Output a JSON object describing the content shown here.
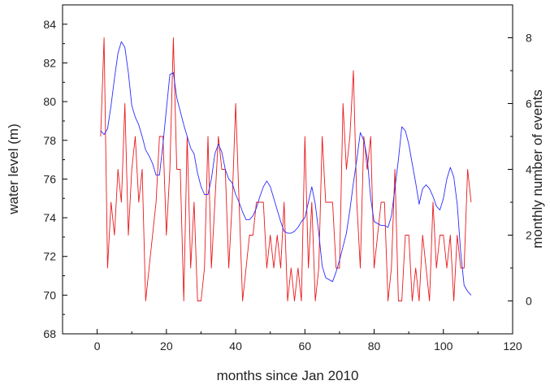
{
  "chart_data": {
    "type": "line",
    "xlabel": "months since Jan 2010",
    "ylabel_left": "water level (m)",
    "ylabel_right": "monthly number of events",
    "xlim": [
      -10,
      120
    ],
    "ylim_left": [
      68,
      85
    ],
    "ylim_right": [
      -1,
      9
    ],
    "x_ticks": [
      0,
      20,
      40,
      60,
      80,
      100,
      120
    ],
    "y_left_ticks": [
      68,
      70,
      72,
      74,
      76,
      78,
      80,
      82,
      84
    ],
    "y_right_ticks": [
      0,
      2,
      4,
      6,
      8
    ],
    "grid": false,
    "series": [
      {
        "axis": "right",
        "color": "#e8191c",
        "x": [
          1,
          2,
          3,
          4,
          5,
          6,
          7,
          8,
          9,
          10,
          11,
          12,
          13,
          14,
          15,
          16,
          17,
          18,
          19,
          20,
          21,
          22,
          23,
          24,
          25,
          26,
          27,
          28,
          29,
          30,
          31,
          32,
          33,
          34,
          35,
          36,
          37,
          38,
          39,
          40,
          41,
          42,
          43,
          44,
          45,
          46,
          47,
          48,
          49,
          50,
          51,
          52,
          53,
          54,
          55,
          56,
          57,
          58,
          59,
          60,
          61,
          62,
          63,
          64,
          65,
          66,
          67,
          68,
          69,
          70,
          71,
          72,
          73,
          74,
          75,
          76,
          77,
          78,
          79,
          80,
          81,
          82,
          83,
          84,
          85,
          86,
          87,
          88,
          89,
          90,
          91,
          92,
          93,
          94,
          95,
          96,
          97,
          98,
          99,
          100,
          101,
          102,
          103,
          104,
          105,
          106,
          107,
          108
        ],
        "values": [
          5,
          8,
          1,
          3,
          2,
          4,
          3,
          6,
          2,
          4,
          5,
          3,
          4,
          0,
          1,
          2,
          3,
          5,
          5,
          2,
          4,
          8,
          4,
          4,
          0,
          5,
          1,
          3,
          0,
          0,
          1,
          5,
          1,
          3,
          5,
          4,
          4,
          1,
          3,
          6,
          3,
          0,
          1,
          2,
          2,
          3,
          3,
          3,
          1,
          2,
          1,
          2,
          1,
          3,
          0,
          1,
          0,
          1,
          0,
          5,
          1,
          3,
          0,
          1,
          5,
          3,
          3,
          3,
          1,
          1,
          6,
          4,
          5,
          7,
          3,
          1,
          5,
          4,
          5,
          1,
          2,
          3,
          3,
          0,
          1,
          4,
          0,
          0,
          2,
          2,
          0,
          1,
          0,
          2,
          1,
          0,
          3,
          1,
          2,
          2,
          1,
          2,
          0,
          2,
          1,
          1,
          4,
          3
        ]
      },
      {
        "axis": "left",
        "color": "#2b2bff",
        "x": [
          1,
          2,
          3,
          4,
          5,
          6,
          7,
          8,
          9,
          10,
          11,
          12,
          13,
          14,
          15,
          16,
          17,
          18,
          19,
          20,
          21,
          22,
          23,
          24,
          25,
          26,
          27,
          28,
          29,
          30,
          31,
          32,
          33,
          34,
          35,
          36,
          37,
          38,
          39,
          40,
          41,
          42,
          43,
          44,
          45,
          46,
          47,
          48,
          49,
          50,
          51,
          52,
          53,
          54,
          55,
          56,
          57,
          58,
          59,
          60,
          61,
          62,
          63,
          64,
          65,
          66,
          67,
          68,
          69,
          70,
          71,
          72,
          73,
          74,
          75,
          76,
          77,
          78,
          79,
          80,
          81,
          82,
          83,
          84,
          85,
          86,
          87,
          88,
          89,
          90,
          91,
          92,
          93,
          94,
          95,
          96,
          97,
          98,
          99,
          100,
          101,
          102,
          103,
          104,
          105,
          106,
          107,
          108
        ],
        "values": [
          78.5,
          78.3,
          78.6,
          79.8,
          81.2,
          82.5,
          83.1,
          82.8,
          81.5,
          79.8,
          79.2,
          78.8,
          78.2,
          77.5,
          77.2,
          76.8,
          76.2,
          76.2,
          77.8,
          79.6,
          81.4,
          81.5,
          80.2,
          79.5,
          78.8,
          78.2,
          77.6,
          77.3,
          76.3,
          75.6,
          75.2,
          75.2,
          76.0,
          77.3,
          77.8,
          77.4,
          76.5,
          76.0,
          75.8,
          75.2,
          74.8,
          74.3,
          73.9,
          73.9,
          74.1,
          74.5,
          75.1,
          75.6,
          75.9,
          75.6,
          75.0,
          74.4,
          73.8,
          73.3,
          73.2,
          73.2,
          73.3,
          73.5,
          73.8,
          74.0,
          74.8,
          75.6,
          74.7,
          73.2,
          71.5,
          70.9,
          70.8,
          70.7,
          71.2,
          71.8,
          72.5,
          73.2,
          74.4,
          75.8,
          77.0,
          78.4,
          78.0,
          77.1,
          75.0,
          73.8,
          73.7,
          73.6,
          73.6,
          73.5,
          74.1,
          75.5,
          77.0,
          78.7,
          78.5,
          77.8,
          76.8,
          75.8,
          74.7,
          75.5,
          75.7,
          75.5,
          75.1,
          74.6,
          74.4,
          75.0,
          76.0,
          76.6,
          76.1,
          74.7,
          72.2,
          70.5,
          70.2,
          70.0
        ]
      }
    ]
  }
}
